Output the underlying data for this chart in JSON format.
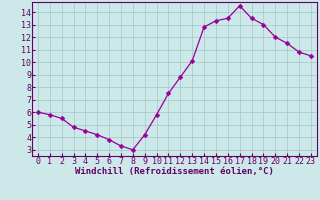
{
  "x": [
    0,
    1,
    2,
    3,
    4,
    5,
    6,
    7,
    8,
    9,
    10,
    11,
    12,
    13,
    14,
    15,
    16,
    17,
    18,
    19,
    20,
    21,
    22,
    23
  ],
  "y": [
    6.0,
    5.8,
    5.5,
    4.8,
    4.5,
    4.2,
    3.8,
    3.3,
    3.0,
    4.2,
    5.8,
    7.5,
    8.8,
    10.1,
    12.8,
    13.3,
    13.5,
    14.5,
    13.5,
    13.0,
    12.0,
    11.5,
    10.8,
    10.5
  ],
  "line_color": "#990099",
  "marker": "D",
  "marker_size": 2.5,
  "bg_color": "#cce8e8",
  "grid_color": "#aacccc",
  "spine_color": "#660066",
  "tick_color": "#660066",
  "xlabel": "Windchill (Refroidissement éolien,°C)",
  "xlim": [
    -0.5,
    23.5
  ],
  "ylim": [
    2.5,
    14.8
  ],
  "yticks": [
    3,
    4,
    5,
    6,
    7,
    8,
    9,
    10,
    11,
    12,
    13,
    14
  ],
  "xticks": [
    0,
    1,
    2,
    3,
    4,
    5,
    6,
    7,
    8,
    9,
    10,
    11,
    12,
    13,
    14,
    15,
    16,
    17,
    18,
    19,
    20,
    21,
    22,
    23
  ],
  "xlabel_fontsize": 6.5,
  "tick_fontsize": 6.0,
  "lw": 0.9
}
